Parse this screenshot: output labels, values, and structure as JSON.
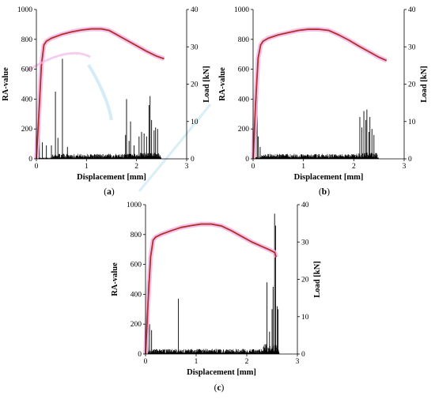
{
  "figure": {
    "panels": [
      {
        "label_prefix": "(",
        "label": "a",
        "label_suffix": ")"
      },
      {
        "label_prefix": "(",
        "label": "b",
        "label_suffix": ")"
      },
      {
        "label_prefix": "(",
        "label": "c",
        "label_suffix": ")"
      }
    ]
  },
  "chart_data": [
    {
      "type": "line",
      "panel": "a",
      "xlabel": "Displacement [mm]",
      "ylabel": "RA-value",
      "y2label": "Load [kN]",
      "xlim": [
        0,
        3
      ],
      "ylim": [
        0,
        1000
      ],
      "y2lim": [
        0,
        40
      ],
      "xticks": [
        "0",
        "1",
        "2",
        "3"
      ],
      "yticks": [
        "0",
        "200",
        "400",
        "600",
        "800",
        "1000"
      ],
      "y2ticks": [
        "0",
        "10",
        "20",
        "30",
        "40"
      ],
      "colors": {
        "load": "#b0302a",
        "ra": "#000000",
        "halo": "#f2b8e8",
        "halo2": "#b8e0f2"
      },
      "series": [
        {
          "axis": "y2",
          "style": "load",
          "x": [
            0,
            0.05,
            0.1,
            0.15,
            0.2,
            0.3,
            0.5,
            0.7,
            0.9,
            1.1,
            1.3,
            1.45,
            1.6,
            1.8,
            2.0,
            2.2,
            2.4,
            2.55
          ],
          "y": [
            0,
            12,
            25,
            30.5,
            31.5,
            32.3,
            33.3,
            34.0,
            34.5,
            34.8,
            34.8,
            34.4,
            33.3,
            31.8,
            30.3,
            28.8,
            27.5,
            26.8
          ]
        },
        {
          "axis": "y",
          "style": "ra",
          "x": [
            0,
            3
          ],
          "base": [
            [
              0,
              5
            ],
            [
              0.28,
              5
            ],
            [
              0.32,
              20
            ],
            [
              2.0,
              20
            ],
            [
              2.05,
              25
            ],
            [
              2.45,
              25
            ],
            [
              2.5,
              0
            ]
          ],
          "spikes": [
            [
              0.06,
              250
            ],
            [
              0.12,
              110
            ],
            [
              0.2,
              90
            ],
            [
              0.3,
              90
            ],
            [
              0.38,
              450
            ],
            [
              0.43,
              140
            ],
            [
              0.52,
              670
            ],
            [
              0.62,
              80
            ],
            [
              1.78,
              160
            ],
            [
              1.8,
              400
            ],
            [
              1.85,
              120
            ],
            [
              1.88,
              250
            ],
            [
              1.95,
              90
            ],
            [
              2.05,
              150
            ],
            [
              2.1,
              180
            ],
            [
              2.15,
              170
            ],
            [
              2.2,
              150
            ],
            [
              2.25,
              360
            ],
            [
              2.27,
              420
            ],
            [
              2.3,
              260
            ],
            [
              2.35,
              190
            ],
            [
              2.38,
              210
            ],
            [
              2.42,
              200
            ]
          ]
        }
      ]
    },
    {
      "type": "line",
      "panel": "b",
      "xlabel": "Displacement [mm]",
      "ylabel": "RA-value",
      "y2label": "Load [kN]",
      "xlim": [
        0,
        3
      ],
      "ylim": [
        0,
        1000
      ],
      "y2lim": [
        0,
        40
      ],
      "xticks": [
        "0",
        "1",
        "2",
        "3"
      ],
      "yticks": [
        "0",
        "200",
        "400",
        "600",
        "800",
        "1000"
      ],
      "y2ticks": [
        "0",
        "10",
        "20",
        "30",
        "40"
      ],
      "colors": {
        "load": "#b0302a",
        "ra": "#000000",
        "halo": "#f2b8e8",
        "halo2": "#b8e0f2"
      },
      "series": [
        {
          "axis": "y2",
          "style": "load",
          "x": [
            0,
            0.05,
            0.1,
            0.15,
            0.2,
            0.3,
            0.5,
            0.7,
            0.9,
            1.1,
            1.3,
            1.5,
            1.7,
            1.9,
            2.1,
            2.3,
            2.5,
            2.65
          ],
          "y": [
            0,
            15,
            27,
            30.5,
            31.5,
            32.3,
            33.2,
            33.8,
            34.4,
            34.7,
            34.7,
            34.4,
            33.2,
            31.8,
            30.2,
            28.7,
            27.2,
            26.3
          ]
        },
        {
          "axis": "y",
          "style": "ra",
          "x": [
            0,
            3
          ],
          "base": [
            [
              0,
              5
            ],
            [
              0.15,
              10
            ],
            [
              0.2,
              20
            ],
            [
              2.05,
              20
            ],
            [
              2.1,
              25
            ],
            [
              2.45,
              25
            ],
            [
              2.5,
              0
            ]
          ],
          "spikes": [
            [
              0.04,
              230
            ],
            [
              0.08,
              420
            ],
            [
              0.1,
              150
            ],
            [
              0.14,
              80
            ],
            [
              2.12,
              280
            ],
            [
              2.16,
              210
            ],
            [
              2.2,
              320
            ],
            [
              2.24,
              260
            ],
            [
              2.26,
              330
            ],
            [
              2.3,
              180
            ],
            [
              2.32,
              280
            ],
            [
              2.36,
              200
            ],
            [
              2.4,
              160
            ]
          ]
        }
      ]
    },
    {
      "type": "line",
      "panel": "c",
      "xlabel": "Displacement [mm]",
      "ylabel": "RA-value",
      "y2label": "Load [kN]",
      "xlim": [
        0,
        3
      ],
      "ylim": [
        0,
        1000
      ],
      "y2lim": [
        0,
        40
      ],
      "xticks": [
        "0",
        "1",
        "2",
        "3"
      ],
      "yticks": [
        "0",
        "200",
        "400",
        "600",
        "800",
        "1000"
      ],
      "y2ticks": [
        "0",
        "10",
        "20",
        "30",
        "40"
      ],
      "colors": {
        "load": "#b0302a",
        "ra": "#000000",
        "halo": "#f2b8e8",
        "halo2": "#b8e0f2"
      },
      "series": [
        {
          "axis": "y2",
          "style": "load",
          "x": [
            0,
            0.05,
            0.1,
            0.15,
            0.2,
            0.3,
            0.5,
            0.7,
            0.9,
            1.1,
            1.3,
            1.5,
            1.7,
            1.9,
            2.1,
            2.3,
            2.45,
            2.55,
            2.58
          ],
          "y": [
            0,
            14,
            26,
            30.5,
            31.3,
            32.0,
            33.0,
            33.9,
            34.4,
            34.8,
            34.8,
            34.3,
            33.0,
            31.5,
            30.0,
            28.8,
            27.9,
            27.2,
            26.0
          ]
        },
        {
          "axis": "y",
          "style": "ra",
          "x": [
            0,
            3
          ],
          "base": [
            [
              0,
              10
            ],
            [
              0.15,
              20
            ],
            [
              2.3,
              20
            ],
            [
              2.35,
              40
            ],
            [
              2.6,
              40
            ],
            [
              2.65,
              0
            ]
          ],
          "spikes": [
            [
              0.05,
              490
            ],
            [
              0.08,
              200
            ],
            [
              0.12,
              160
            ],
            [
              0.65,
              370
            ],
            [
              2.4,
              480
            ],
            [
              2.45,
              150
            ],
            [
              2.5,
              300
            ],
            [
              2.52,
              450
            ],
            [
              2.55,
              940
            ],
            [
              2.57,
              860
            ],
            [
              2.6,
              320
            ],
            [
              2.62,
              300
            ]
          ]
        }
      ]
    }
  ]
}
